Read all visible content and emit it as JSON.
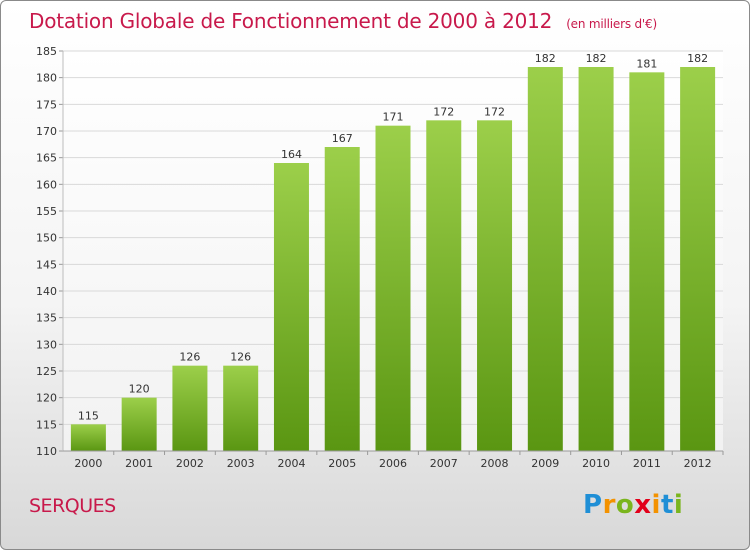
{
  "header": {
    "title": "Dotation Globale de Fonctionnement de 2000 à 2012",
    "unit": "(en milliers d'€)"
  },
  "footer": {
    "place": "SERQUES",
    "brand_letters": [
      "P",
      "r",
      "o",
      "x",
      "i",
      "t",
      "i"
    ],
    "brand_colors": [
      "#1f8fd6",
      "#f39200",
      "#7ab51d",
      "#e2001a",
      "#f39200",
      "#1f8fd6",
      "#7ab51d"
    ]
  },
  "colors": {
    "bar_light": "#9ccf4a",
    "bar_dark": "#5a9612",
    "title": "#c8194b",
    "grid": "#d9d9d9"
  },
  "chart_data": {
    "type": "bar",
    "categories": [
      "2000",
      "2001",
      "2002",
      "2003",
      "2004",
      "2005",
      "2006",
      "2007",
      "2008",
      "2009",
      "2010",
      "2011",
      "2012"
    ],
    "values": [
      115,
      120,
      126,
      126,
      164,
      167,
      171,
      172,
      172,
      182,
      182,
      181,
      182
    ],
    "ylim": [
      110,
      185
    ],
    "yticks": [
      110,
      115,
      120,
      125,
      130,
      135,
      140,
      145,
      150,
      155,
      160,
      165,
      170,
      175,
      180,
      185
    ],
    "grid": true,
    "title": "Dotation Globale de Fonctionnement de 2000 à 2012",
    "xlabel": "",
    "ylabel": ""
  }
}
